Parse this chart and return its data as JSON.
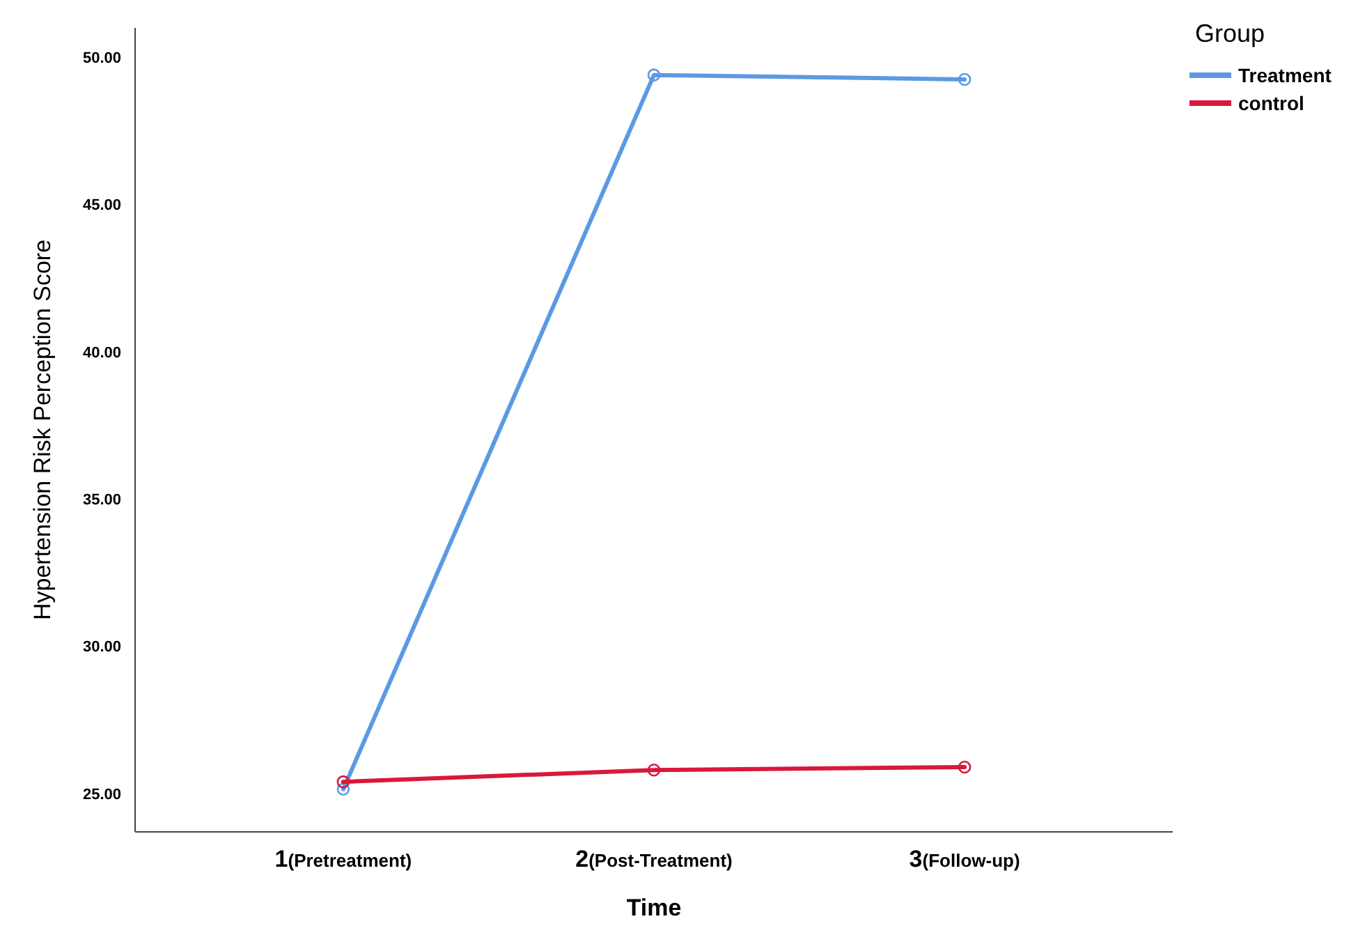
{
  "chart_data": {
    "type": "line",
    "xlabel": "Time",
    "ylabel": "Hypertension Risk Perception Score",
    "legend_title": "Group",
    "categories": [
      "1(Pretreatment)",
      "2(Post-Treatment)",
      "3(Follow-up)"
    ],
    "series": [
      {
        "name": "Treatment",
        "color": "#5b9ae3",
        "values": [
          25.15,
          49.4,
          49.25
        ]
      },
      {
        "name": "control",
        "color": "#d8183c",
        "values": [
          25.4,
          25.8,
          25.9
        ]
      }
    ],
    "ylim": [
      23.7,
      51
    ],
    "yticks": [
      {
        "value": 25,
        "label": "25.00"
      },
      {
        "value": 30,
        "label": "30.00"
      },
      {
        "value": 35,
        "label": "35.00"
      },
      {
        "value": 40,
        "label": "40.00"
      },
      {
        "value": 45,
        "label": "45.00"
      },
      {
        "value": 50,
        "label": "50.00"
      }
    ],
    "grid": false,
    "legend": "top right",
    "marker": "circle",
    "line_style": "solid"
  }
}
